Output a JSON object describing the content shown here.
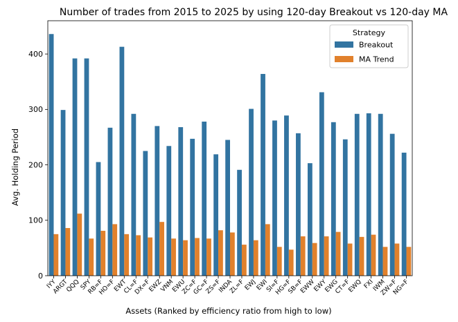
{
  "chart_data": {
    "type": "bar",
    "title": "Number of trades from 2015 to 2025 by using 120-day Breakout vs 120-day MA",
    "xlabel": "Assets (Ranked by efficiency ratio from high to low)",
    "ylabel": "Avg. Holding Period",
    "ylim": [
      0,
      460
    ],
    "yticks": [
      0,
      100,
      200,
      300,
      400
    ],
    "grid": false,
    "legend": {
      "title": "Strategy",
      "placement": "top-right"
    },
    "categories": [
      "IYY",
      "ARGT",
      "QQQ",
      "SPY",
      "RB=F",
      "HO=F",
      "EWT",
      "CL=F",
      "DX=F",
      "EWZ",
      "VNM",
      "EWU",
      "ZC=F",
      "GC=F",
      "ZS=F",
      "INDA",
      "ZL=F",
      "EWJ",
      "EWI",
      "SI=F",
      "HG=F",
      "SB=F",
      "EWW",
      "EWY",
      "EWG",
      "CT=F",
      "EWQ",
      "FXI",
      "IWM",
      "ZW=F",
      "NG=F"
    ],
    "series": [
      {
        "name": "Breakout",
        "color": "#3274a1",
        "values": [
          436,
          299,
          392,
          392,
          205,
          267,
          413,
          292,
          225,
          270,
          234,
          268,
          247,
          278,
          219,
          245,
          191,
          301,
          364,
          280,
          289,
          257,
          203,
          331,
          277,
          246,
          292,
          293,
          292,
          256,
          222
        ]
      },
      {
        "name": "MA Trend",
        "color": "#e1812c",
        "values": [
          75,
          86,
          112,
          67,
          81,
          93,
          75,
          73,
          69,
          97,
          67,
          64,
          68,
          67,
          82,
          78,
          56,
          64,
          93,
          52,
          47,
          71,
          59,
          71,
          79,
          58,
          70,
          74,
          52,
          58,
          52
        ]
      }
    ]
  }
}
